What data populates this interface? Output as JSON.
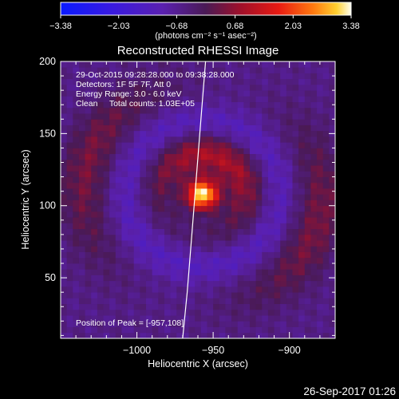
{
  "chart_data": {
    "type": "heatmap",
    "title": "Reconstructed RHESSI Image",
    "xlabel": "Heliocentric X (arcsec)",
    "ylabel": "Heliocentric Y (arcsec)",
    "xlim": [
      -1050,
      -870
    ],
    "ylim": [
      8,
      200
    ],
    "x_ticks": [
      -1000,
      -950,
      -900
    ],
    "x_tick_labels": [
      "−1000",
      "−950",
      "−900"
    ],
    "y_ticks": [
      50,
      100,
      150,
      200
    ],
    "y_tick_labels": [
      "50",
      "100",
      "150",
      "200"
    ],
    "colorbar": {
      "range": [
        -3.38,
        3.38
      ],
      "ticks": [
        -3.38,
        -2.03,
        -0.68,
        0.68,
        2.03,
        3.38
      ],
      "tick_labels": [
        "−3.38",
        "−2.03",
        "−0.68",
        "0.68",
        "2.03",
        "3.38"
      ],
      "units_label": "(photons cm⁻² s⁻¹ asec⁻²)"
    },
    "annotations": [
      "29-Oct-2015 09:28:28.000 to 09:38:28.000",
      "Detectors: 1F 5F 7F, Att 0",
      "Energy Range: 3.0 - 6.0 keV",
      "Clean     Total counts: 1.03E+05"
    ],
    "peak": {
      "label": "Position of Peak = [-957,108]",
      "x": -957,
      "y": 108
    },
    "limb_curve": {
      "x": [
        -955,
        -958,
        -961,
        -964,
        -967,
        -970
      ],
      "y": [
        200,
        160,
        120,
        80,
        40,
        8
      ]
    }
  },
  "footer": {
    "timestamp": "26-Sep-2017 01:26"
  }
}
